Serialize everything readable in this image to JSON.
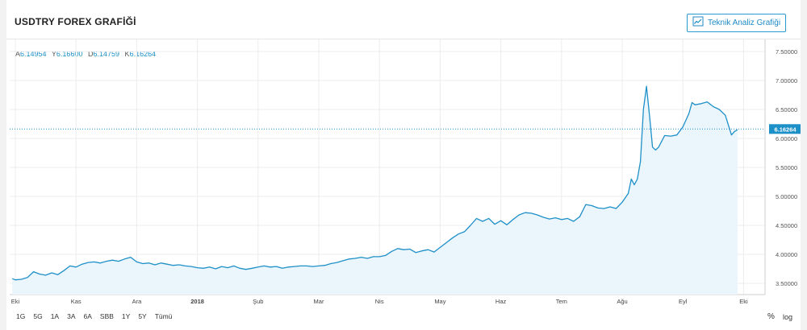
{
  "header": {
    "title": "USDTRY FOREX GRAFİĞİ",
    "analysis_button": "Teknik Analiz Grafiği"
  },
  "ohlc": [
    {
      "key": "A",
      "value": "6.14954"
    },
    {
      "key": "Y",
      "value": "6.16600"
    },
    {
      "key": "D",
      "value": "6.14759"
    },
    {
      "key": "K",
      "value": "6.16264"
    }
  ],
  "periods": [
    "1G",
    "5G",
    "1A",
    "3A",
    "6A",
    "SBB",
    "1Y",
    "5Y",
    "Tümü"
  ],
  "scale_controls": {
    "percent": "%",
    "log": "log"
  },
  "colors": {
    "line": "#1e90c8",
    "fill": "#eaf5fc",
    "axis_text": "#555555",
    "grid": "#ececec",
    "price_tag": "#1e90c8"
  },
  "chart_data": {
    "type": "area",
    "title": "USDTRY FOREX GRAFİĞİ",
    "xlabel": "",
    "ylabel": "",
    "ylim": [
      3.5,
      7.5
    ],
    "y_ticks": [
      "3.50000",
      "4.00000",
      "4.50000",
      "5.00000",
      "5.50000",
      "6.00000",
      "6.50000",
      "7.00000",
      "7.50000"
    ],
    "x_ticks": [
      {
        "label": "Eki",
        "month_index": 0
      },
      {
        "label": "Kas",
        "month_index": 1
      },
      {
        "label": "Ara",
        "month_index": 2
      },
      {
        "label": "2018",
        "month_index": 3,
        "bold": true
      },
      {
        "label": "Şub",
        "month_index": 4
      },
      {
        "label": "Mar",
        "month_index": 5
      },
      {
        "label": "Nis",
        "month_index": 6
      },
      {
        "label": "May",
        "month_index": 7
      },
      {
        "label": "Haz",
        "month_index": 8
      },
      {
        "label": "Tem",
        "month_index": 9
      },
      {
        "label": "Ağu",
        "month_index": 10
      },
      {
        "label": "Eyl",
        "month_index": 11
      },
      {
        "label": "Eki",
        "month_index": 12
      }
    ],
    "last_price": 6.16264,
    "last_price_label": "6.16264",
    "series": [
      {
        "points": [
          [
            -0.05,
            3.58
          ],
          [
            0.0,
            3.56
          ],
          [
            0.1,
            3.57
          ],
          [
            0.2,
            3.6
          ],
          [
            0.3,
            3.7
          ],
          [
            0.4,
            3.66
          ],
          [
            0.5,
            3.64
          ],
          [
            0.6,
            3.68
          ],
          [
            0.7,
            3.65
          ],
          [
            0.8,
            3.72
          ],
          [
            0.9,
            3.8
          ],
          [
            1.0,
            3.78
          ],
          [
            1.1,
            3.83
          ],
          [
            1.2,
            3.86
          ],
          [
            1.3,
            3.87
          ],
          [
            1.4,
            3.85
          ],
          [
            1.5,
            3.88
          ],
          [
            1.6,
            3.9
          ],
          [
            1.7,
            3.88
          ],
          [
            1.8,
            3.92
          ],
          [
            1.9,
            3.95
          ],
          [
            2.0,
            3.87
          ],
          [
            2.1,
            3.84
          ],
          [
            2.2,
            3.85
          ],
          [
            2.3,
            3.82
          ],
          [
            2.4,
            3.85
          ],
          [
            2.5,
            3.83
          ],
          [
            2.6,
            3.81
          ],
          [
            2.7,
            3.82
          ],
          [
            2.8,
            3.8
          ],
          [
            2.9,
            3.79
          ],
          [
            3.0,
            3.77
          ],
          [
            3.1,
            3.76
          ],
          [
            3.2,
            3.78
          ],
          [
            3.3,
            3.75
          ],
          [
            3.4,
            3.79
          ],
          [
            3.5,
            3.77
          ],
          [
            3.6,
            3.8
          ],
          [
            3.7,
            3.76
          ],
          [
            3.8,
            3.74
          ],
          [
            3.9,
            3.76
          ],
          [
            4.0,
            3.78
          ],
          [
            4.1,
            3.8
          ],
          [
            4.2,
            3.78
          ],
          [
            4.3,
            3.79
          ],
          [
            4.4,
            3.76
          ],
          [
            4.5,
            3.78
          ],
          [
            4.6,
            3.79
          ],
          [
            4.7,
            3.8
          ],
          [
            4.8,
            3.8
          ],
          [
            4.9,
            3.79
          ],
          [
            5.0,
            3.8
          ],
          [
            5.1,
            3.81
          ],
          [
            5.2,
            3.84
          ],
          [
            5.3,
            3.86
          ],
          [
            5.4,
            3.89
          ],
          [
            5.5,
            3.92
          ],
          [
            5.6,
            3.93
          ],
          [
            5.7,
            3.95
          ],
          [
            5.8,
            3.93
          ],
          [
            5.9,
            3.96
          ],
          [
            6.0,
            3.96
          ],
          [
            6.1,
            3.98
          ],
          [
            6.2,
            4.05
          ],
          [
            6.3,
            4.1
          ],
          [
            6.4,
            4.08
          ],
          [
            6.5,
            4.09
          ],
          [
            6.6,
            4.03
          ],
          [
            6.7,
            4.06
          ],
          [
            6.8,
            4.08
          ],
          [
            6.9,
            4.04
          ],
          [
            7.0,
            4.12
          ],
          [
            7.1,
            4.2
          ],
          [
            7.2,
            4.28
          ],
          [
            7.3,
            4.35
          ],
          [
            7.4,
            4.39
          ],
          [
            7.5,
            4.5
          ],
          [
            7.6,
            4.62
          ],
          [
            7.7,
            4.57
          ],
          [
            7.8,
            4.62
          ],
          [
            7.9,
            4.52
          ],
          [
            8.0,
            4.58
          ],
          [
            8.1,
            4.51
          ],
          [
            8.2,
            4.6
          ],
          [
            8.3,
            4.68
          ],
          [
            8.4,
            4.72
          ],
          [
            8.5,
            4.71
          ],
          [
            8.6,
            4.68
          ],
          [
            8.7,
            4.64
          ],
          [
            8.8,
            4.61
          ],
          [
            8.9,
            4.63
          ],
          [
            9.0,
            4.6
          ],
          [
            9.1,
            4.62
          ],
          [
            9.2,
            4.57
          ],
          [
            9.3,
            4.65
          ],
          [
            9.4,
            4.86
          ],
          [
            9.5,
            4.84
          ],
          [
            9.6,
            4.8
          ],
          [
            9.7,
            4.79
          ],
          [
            9.8,
            4.82
          ],
          [
            9.9,
            4.79
          ],
          [
            10.0,
            4.9
          ],
          [
            10.1,
            5.05
          ],
          [
            10.15,
            5.3
          ],
          [
            10.2,
            5.2
          ],
          [
            10.25,
            5.3
          ],
          [
            10.3,
            5.6
          ],
          [
            10.35,
            6.5
          ],
          [
            10.4,
            6.9
          ],
          [
            10.45,
            6.4
          ],
          [
            10.5,
            5.85
          ],
          [
            10.55,
            5.8
          ],
          [
            10.6,
            5.85
          ],
          [
            10.7,
            6.05
          ],
          [
            10.8,
            6.04
          ],
          [
            10.9,
            6.06
          ],
          [
            11.0,
            6.2
          ],
          [
            11.1,
            6.43
          ],
          [
            11.15,
            6.62
          ],
          [
            11.2,
            6.58
          ],
          [
            11.3,
            6.6
          ],
          [
            11.4,
            6.63
          ],
          [
            11.5,
            6.55
          ],
          [
            11.6,
            6.5
          ],
          [
            11.7,
            6.4
          ],
          [
            11.8,
            6.06
          ],
          [
            11.85,
            6.12
          ],
          [
            11.9,
            6.15
          ]
        ]
      }
    ]
  }
}
